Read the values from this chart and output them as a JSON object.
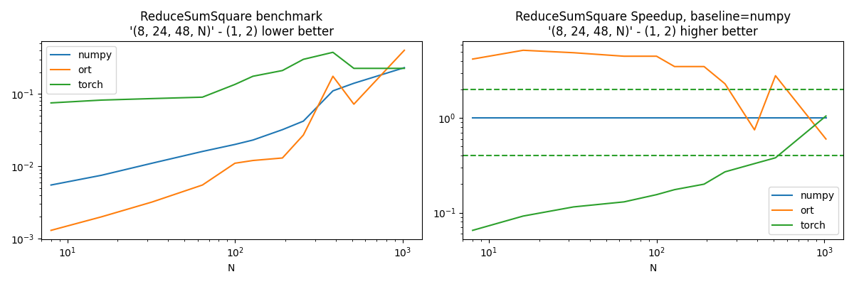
{
  "title1": "ReduceSumSquare benchmark\n'(8, 24, 48, N)' - (1, 2) lower better",
  "title2": "ReduceSumSquare Speedup, baseline=numpy\n'(8, 24, 48, N)' - (1, 2) higher better",
  "xlabel": "N",
  "N": [
    8,
    16,
    32,
    64,
    100,
    128,
    192,
    256,
    384,
    512,
    1024
  ],
  "numpy": [
    0.0055,
    0.0075,
    0.011,
    0.016,
    0.02,
    0.023,
    0.032,
    0.042,
    0.11,
    0.14,
    0.23
  ],
  "ort": [
    0.0013,
    0.002,
    0.0032,
    0.0055,
    0.011,
    0.012,
    0.013,
    0.027,
    0.175,
    0.072,
    0.4
  ],
  "torch": [
    0.075,
    0.082,
    0.086,
    0.09,
    0.135,
    0.175,
    0.21,
    0.3,
    0.375,
    0.225,
    0.225
  ],
  "speedup_numpy": [
    1.0,
    1.0,
    1.0,
    1.0,
    1.0,
    1.0,
    1.0,
    1.0,
    1.0,
    1.0,
    1.0
  ],
  "speedup_ort": [
    4.2,
    5.2,
    4.9,
    4.5,
    4.5,
    3.5,
    3.5,
    2.3,
    0.75,
    2.8,
    0.6
  ],
  "speedup_torch": [
    0.065,
    0.092,
    0.115,
    0.13,
    0.155,
    0.175,
    0.2,
    0.27,
    0.33,
    0.38,
    1.05
  ],
  "color_numpy": "#1f77b4",
  "color_ort": "#ff7f0e",
  "color_torch": "#2ca02c",
  "dashed_upper": 2.0,
  "dashed_lower": 0.4
}
